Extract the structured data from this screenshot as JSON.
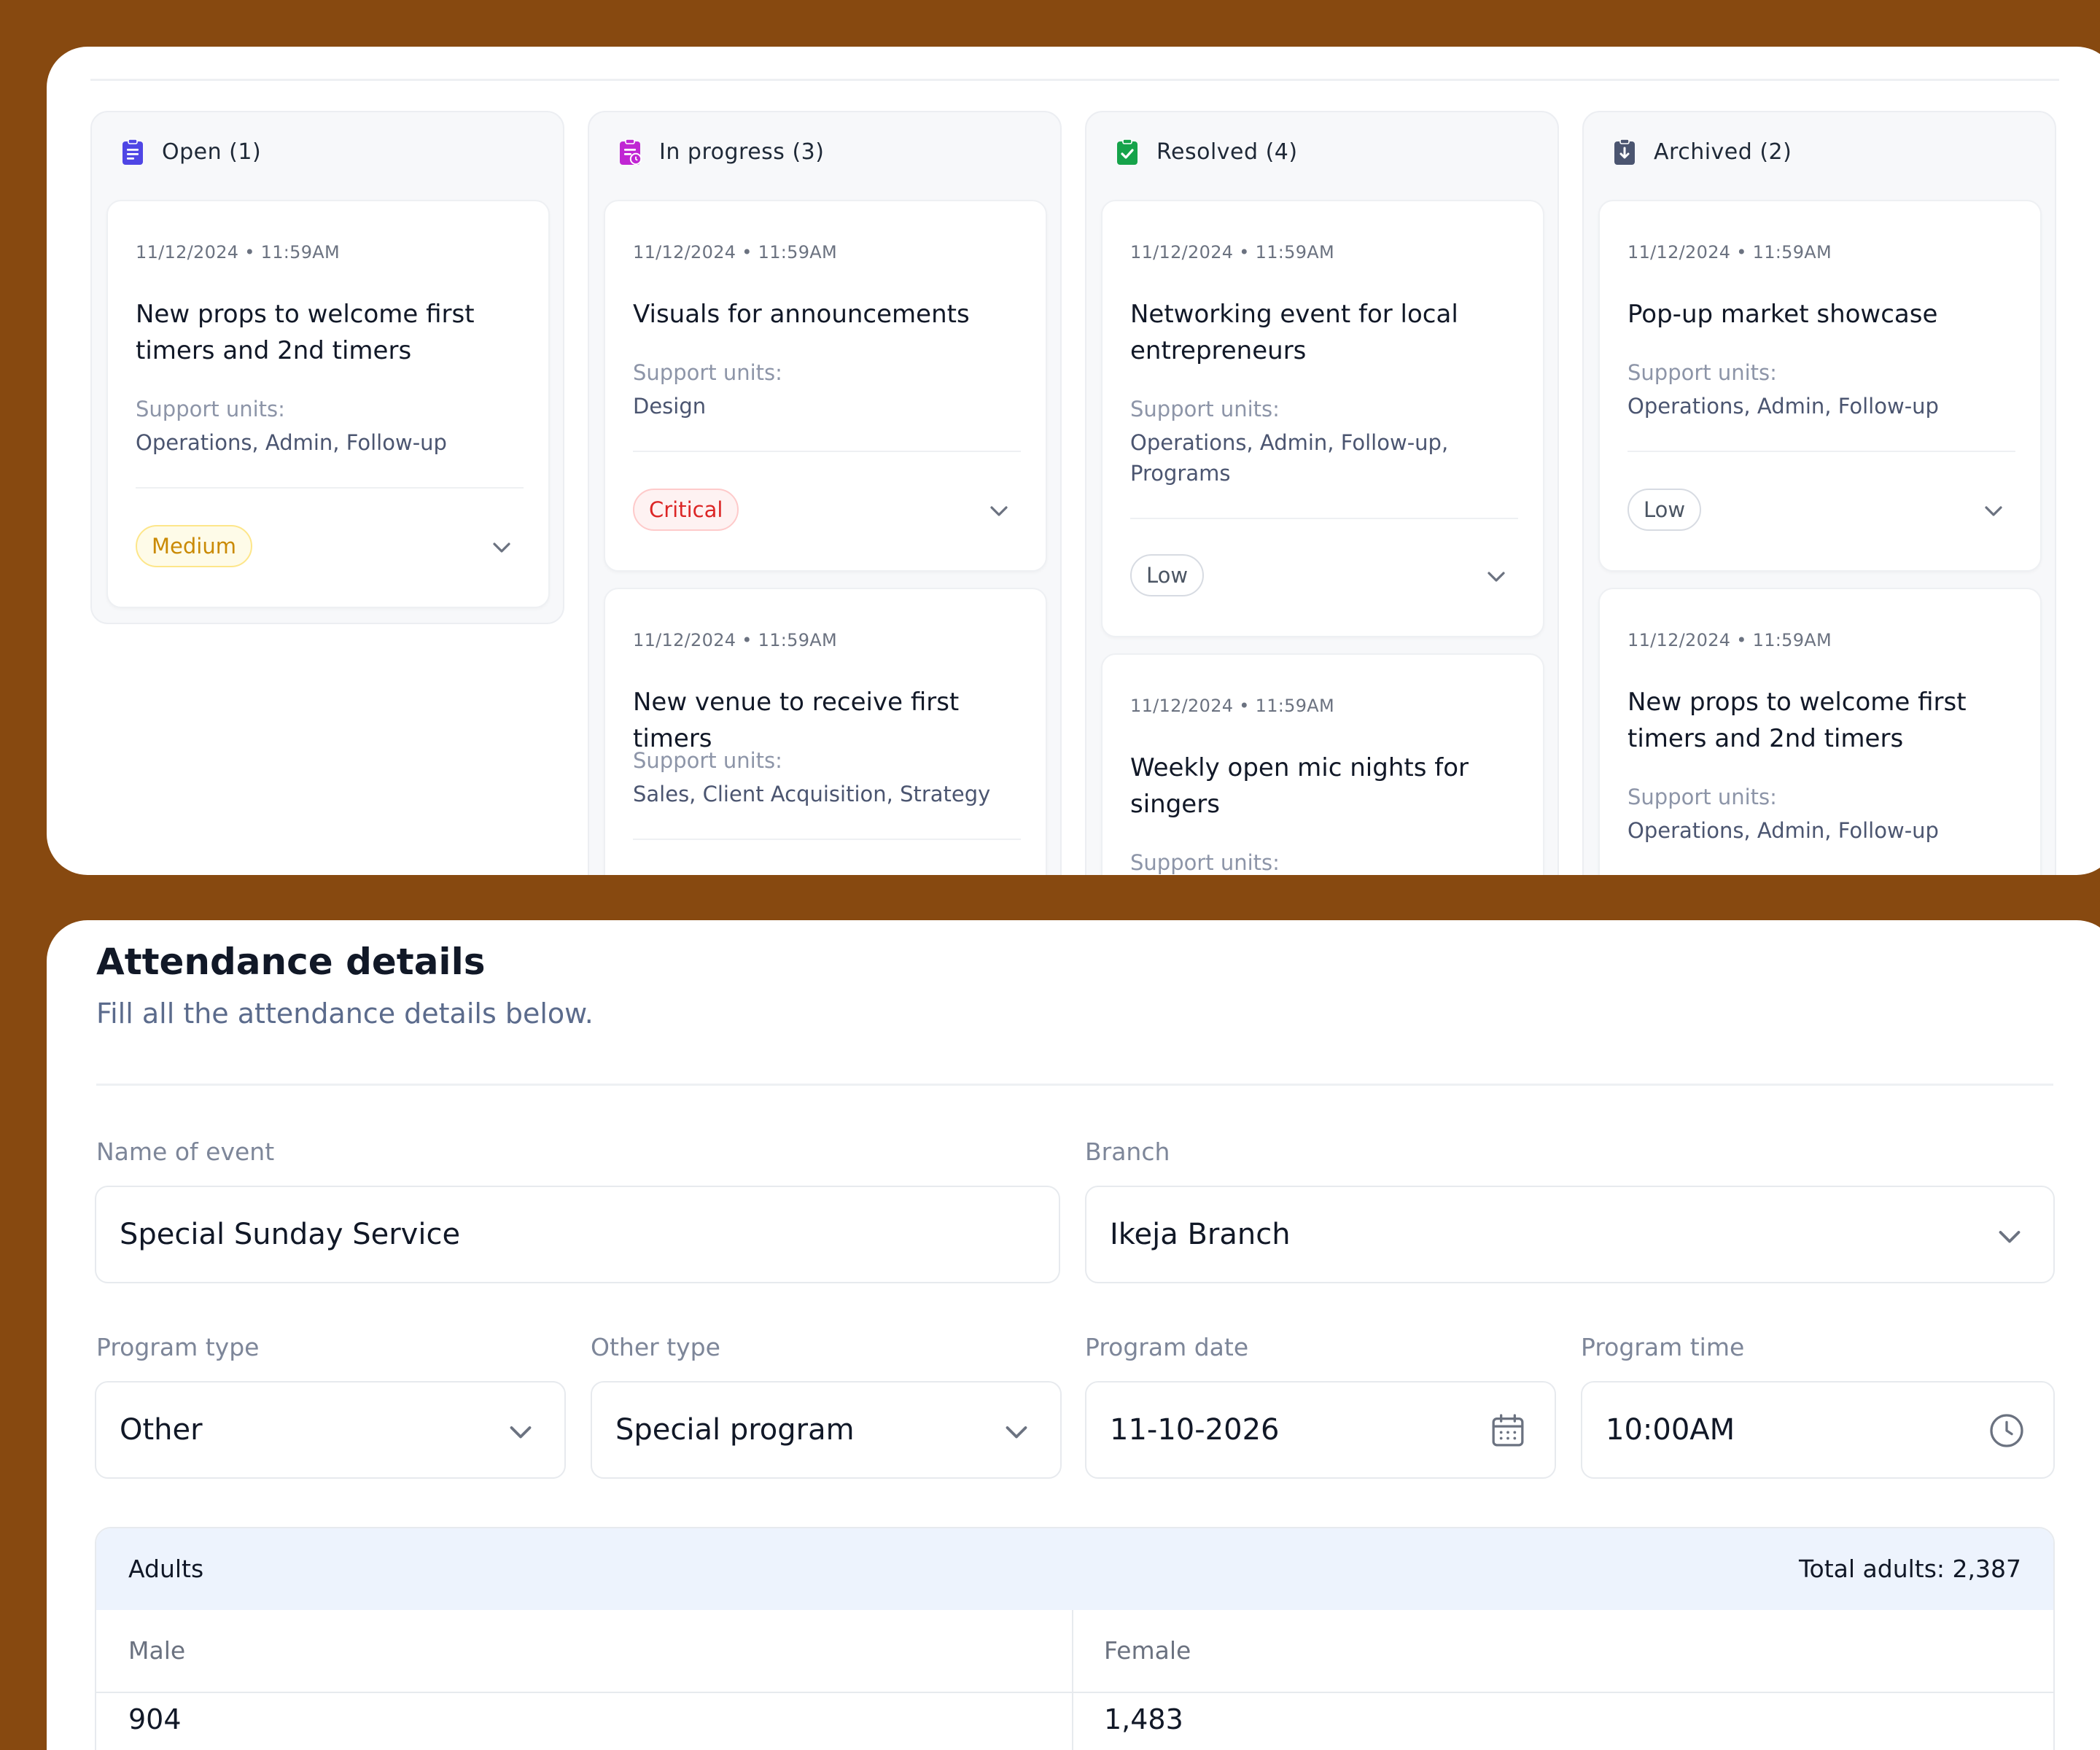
{
  "kanban": {
    "columns": [
      {
        "title": "Open (1)",
        "icon": "clipboard-list-icon",
        "icon_color": "#4f46e5",
        "cards": [
          {
            "date": "11/12/2024 • 11:59AM",
            "title": "New props to welcome first timers and 2nd timers",
            "support_label": "Support units:",
            "support_units": "Operations, Admin, Follow-up",
            "priority": "Medium"
          }
        ]
      },
      {
        "title": "In progress (3)",
        "icon": "clipboard-clock-icon",
        "icon_color": "#c026d3",
        "cards": [
          {
            "date": "11/12/2024 • 11:59AM",
            "title": "Visuals for announcements",
            "support_label": "Support units:",
            "support_units": "Design",
            "priority": "Critical"
          },
          {
            "date": "11/12/2024 • 11:59AM",
            "title": "New venue to receive first timers",
            "support_label": "Support units:",
            "support_units": "Sales, Client Acquisition, Strategy"
          }
        ]
      },
      {
        "title": "Resolved (4)",
        "icon": "clipboard-check-icon",
        "icon_color": "#16a34a",
        "cards": [
          {
            "date": "11/12/2024 • 11:59AM",
            "title": "Networking event for local entrepreneurs",
            "support_label": "Support units:",
            "support_units": "Operations, Admin, Follow-up, Programs",
            "priority": "Low"
          },
          {
            "date": "11/12/2024 • 11:59AM",
            "title": "Weekly open mic nights for singers",
            "support_label": "Support units:"
          }
        ]
      },
      {
        "title": "Archived (2)",
        "icon": "clipboard-archive-icon",
        "icon_color": "#4b5570",
        "cards": [
          {
            "date": "11/12/2024 • 11:59AM",
            "title": "Pop-up market showcase",
            "support_label": "Support units:",
            "support_units": "Operations, Admin, Follow-up",
            "priority": "Low"
          },
          {
            "date": "11/12/2024 • 11:59AM",
            "title": "New props to welcome first timers and 2nd timers",
            "support_label": "Support units:",
            "support_units": "Operations, Admin, Follow-up"
          }
        ]
      }
    ]
  },
  "form": {
    "title": "Attendance details",
    "subtitle": "Fill all the attendance details below.",
    "fields": {
      "event_name": {
        "label": "Name of event",
        "value": "Special Sunday Service"
      },
      "branch": {
        "label": "Branch",
        "value": "Ikeja Branch"
      },
      "program_type": {
        "label": "Program type",
        "value": "Other"
      },
      "other_type": {
        "label": "Other type",
        "value": "Special program"
      },
      "program_date": {
        "label": "Program date",
        "value": "11-10-2026"
      },
      "program_time": {
        "label": "Program time",
        "value": "10:00AM"
      }
    },
    "adults": {
      "title": "Adults",
      "total": "Total adults: 2,387",
      "male_label": "Male",
      "female_label": "Female",
      "male_value": "904",
      "female_value": "1,483"
    }
  }
}
